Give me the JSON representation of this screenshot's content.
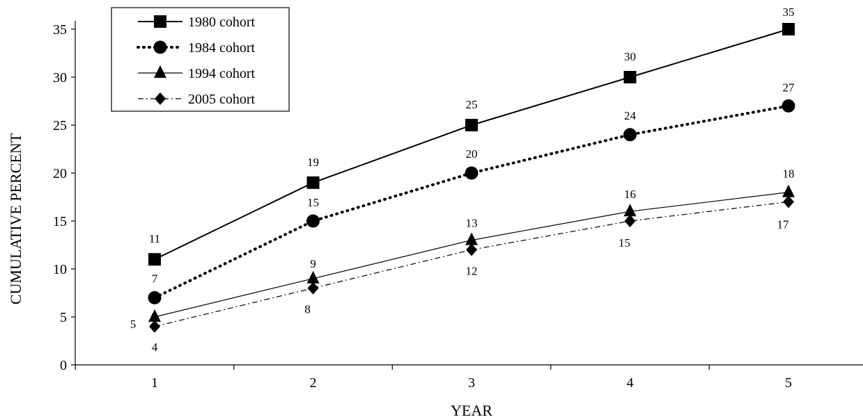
{
  "chart_data": {
    "type": "line",
    "title": "",
    "xlabel": "YEAR",
    "ylabel": "CUMULATIVE PERCENT",
    "x": [
      1,
      2,
      3,
      4,
      5
    ],
    "ylim": [
      0,
      35
    ],
    "yticks": [
      0,
      5,
      10,
      15,
      20,
      25,
      30,
      35
    ],
    "grid": false,
    "legend_position": "top-left",
    "series": [
      {
        "name": "1980 cohort",
        "values": [
          11,
          19,
          25,
          30,
          35
        ],
        "marker": "square",
        "line": "solid-thick",
        "labels": [
          "11",
          "19",
          "25",
          "30",
          "35"
        ]
      },
      {
        "name": "1984 cohort",
        "values": [
          7,
          15,
          20,
          24,
          27
        ],
        "marker": "circle",
        "line": "dotted",
        "labels": [
          "7",
          "15",
          "20",
          "24",
          "27"
        ]
      },
      {
        "name": "1994 cohort",
        "values": [
          5,
          9,
          13,
          16,
          18
        ],
        "marker": "triangle",
        "line": "solid-thin",
        "labels": [
          "5",
          "9",
          "13",
          "16",
          "18"
        ]
      },
      {
        "name": "2005 cohort",
        "values": [
          4,
          8,
          12,
          15,
          17
        ],
        "marker": "diamond",
        "line": "dash-dot",
        "labels": [
          "4",
          "8",
          "12",
          "15",
          "17"
        ]
      }
    ],
    "colors": {
      "line": "#000000",
      "background": "#ffffff"
    }
  }
}
